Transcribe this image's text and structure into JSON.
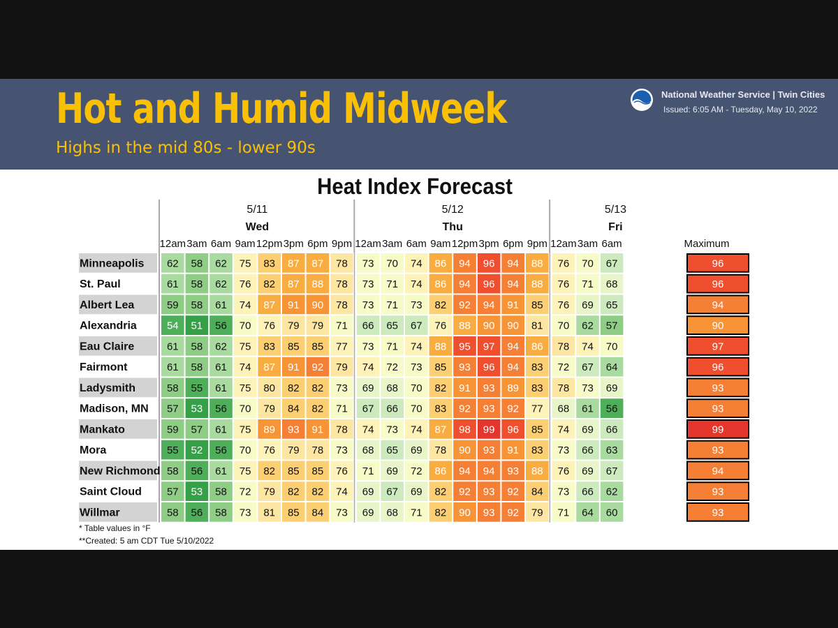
{
  "header": {
    "headline": "Hot and Humid Midweek",
    "subhead": "Highs in the mid 80s - lower 90s",
    "organization": "National Weather Service | Twin Cities",
    "issued": "Issued: 6:05 AM - Tuesday, May 10, 2022",
    "logo_icon": "noaa-logo-icon"
  },
  "footnotes": [
    "* Table values in °F",
    "**Created: 5 am CDT Tue 5/10/2022"
  ],
  "chart_data": {
    "type": "heatmap",
    "title": "Heat Index Forecast",
    "days": [
      {
        "date": "5/11",
        "name": "Wed",
        "times": [
          "12am",
          "3am",
          "6am",
          "9am",
          "12pm",
          "3pm",
          "6pm",
          "9pm"
        ]
      },
      {
        "date": "5/12",
        "name": "Thu",
        "times": [
          "12am",
          "3am",
          "6am",
          "9am",
          "12pm",
          "3pm",
          "6pm",
          "9pm"
        ]
      },
      {
        "date": "5/13",
        "name": "Fri",
        "times": [
          "12am",
          "3am",
          "6am"
        ]
      }
    ],
    "max_label": "Maximum",
    "rows": [
      {
        "location": "Minneapolis",
        "values": [
          62,
          58,
          62,
          75,
          83,
          87,
          87,
          78,
          73,
          70,
          74,
          86,
          94,
          96,
          94,
          88,
          76,
          70,
          67
        ],
        "max": 96
      },
      {
        "location": "St. Paul",
        "values": [
          61,
          58,
          62,
          76,
          82,
          87,
          88,
          78,
          73,
          71,
          74,
          86,
          94,
          96,
          94,
          88,
          76,
          71,
          68
        ],
        "max": 96
      },
      {
        "location": "Albert Lea",
        "values": [
          59,
          58,
          61,
          74,
          87,
          91,
          90,
          78,
          73,
          71,
          73,
          82,
          92,
          94,
          91,
          85,
          76,
          69,
          65
        ],
        "max": 94
      },
      {
        "location": "Alexandria",
        "values": [
          54,
          51,
          56,
          70,
          76,
          79,
          79,
          71,
          66,
          65,
          67,
          76,
          88,
          90,
          90,
          81,
          70,
          62,
          57
        ],
        "max": 90
      },
      {
        "location": "Eau Claire",
        "values": [
          61,
          58,
          62,
          75,
          83,
          85,
          85,
          77,
          73,
          71,
          74,
          88,
          95,
          97,
          94,
          86,
          78,
          74,
          70
        ],
        "max": 97
      },
      {
        "location": "Fairmont",
        "values": [
          61,
          58,
          61,
          74,
          87,
          91,
          92,
          79,
          74,
          72,
          73,
          85,
          93,
          96,
          94,
          83,
          72,
          67,
          64
        ],
        "max": 96
      },
      {
        "location": "Ladysmith",
        "values": [
          58,
          55,
          61,
          75,
          80,
          82,
          82,
          73,
          69,
          68,
          70,
          82,
          91,
          93,
          89,
          83,
          78,
          73,
          69
        ],
        "max": 93
      },
      {
        "location": "Madison, MN",
        "values": [
          57,
          53,
          56,
          70,
          79,
          84,
          82,
          71,
          67,
          66,
          70,
          83,
          92,
          93,
          92,
          77,
          68,
          61,
          56
        ],
        "max": 93
      },
      {
        "location": "Mankato",
        "values": [
          59,
          57,
          61,
          75,
          89,
          93,
          91,
          78,
          74,
          73,
          74,
          87,
          98,
          99,
          96,
          85,
          74,
          69,
          66
        ],
        "max": 99
      },
      {
        "location": "Mora",
        "values": [
          55,
          52,
          56,
          70,
          76,
          79,
          78,
          73,
          68,
          65,
          69,
          78,
          90,
          93,
          91,
          83,
          73,
          66,
          63
        ],
        "max": 93
      },
      {
        "location": "New Richmond",
        "values": [
          58,
          56,
          61,
          75,
          82,
          85,
          85,
          76,
          71,
          69,
          72,
          86,
          94,
          94,
          93,
          88,
          76,
          69,
          67
        ],
        "max": 94
      },
      {
        "location": "Saint Cloud",
        "values": [
          57,
          53,
          58,
          72,
          79,
          82,
          82,
          74,
          69,
          67,
          69,
          82,
          92,
          93,
          92,
          84,
          73,
          66,
          62
        ],
        "max": 93
      },
      {
        "location": "Willmar",
        "values": [
          58,
          56,
          58,
          73,
          81,
          85,
          84,
          73,
          69,
          68,
          71,
          82,
          90,
          93,
          92,
          79,
          71,
          64,
          60
        ],
        "max": 93
      }
    ],
    "color_scale": {
      "51": "#35a047",
      "54": "#4fae5a",
      "57": "#8fcd86",
      "60": "#a9da9f",
      "65": "#cdeabf",
      "68": "#e8f5c8",
      "70": "#f7fbc8",
      "74": "#fdf2b8",
      "78": "#fde6a2",
      "82": "#fccf73",
      "86": "#f9ad41",
      "89": "#f79536",
      "92": "#f57f34",
      "95": "#ef4e2f",
      "99": "#e4362c"
    }
  }
}
